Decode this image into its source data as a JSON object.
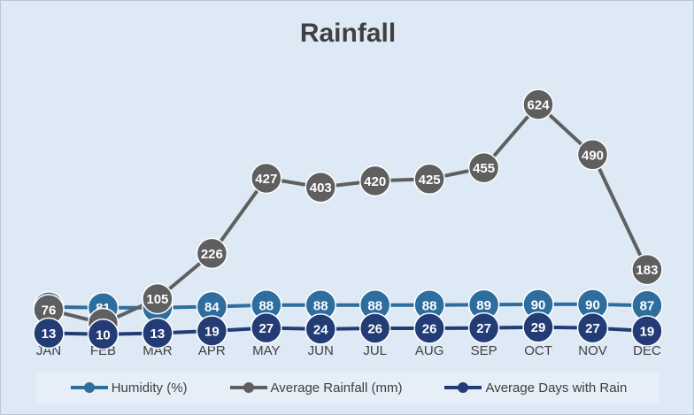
{
  "chart_data": {
    "type": "line",
    "title": "Rainfall",
    "categories": [
      "JAN",
      "FEB",
      "MAR",
      "APR",
      "MAY",
      "JUN",
      "JUL",
      "AUG",
      "SEP",
      "OCT",
      "NOV",
      "DEC"
    ],
    "ylim": [
      0,
      700
    ],
    "grid": false,
    "legend_position": "bottom",
    "series": [
      {
        "name": "Humidity (%)",
        "color": "#2e6e9e",
        "values": [
          83,
          81,
          81,
          84,
          88,
          88,
          88,
          88,
          89,
          90,
          90,
          87
        ]
      },
      {
        "name": "Average Rainfall (mm)",
        "color": "#5f5f5f",
        "values": [
          76,
          39,
          105,
          226,
          427,
          403,
          420,
          425,
          455,
          624,
          490,
          183
        ]
      },
      {
        "name": "Average Days with Rain",
        "color": "#233c75",
        "values": [
          13,
          10,
          13,
          19,
          27,
          24,
          26,
          26,
          27,
          29,
          27,
          19
        ]
      }
    ]
  },
  "colors": {
    "background": "#dde9f5",
    "title": "#404040",
    "marker_border": "#ffffff"
  }
}
